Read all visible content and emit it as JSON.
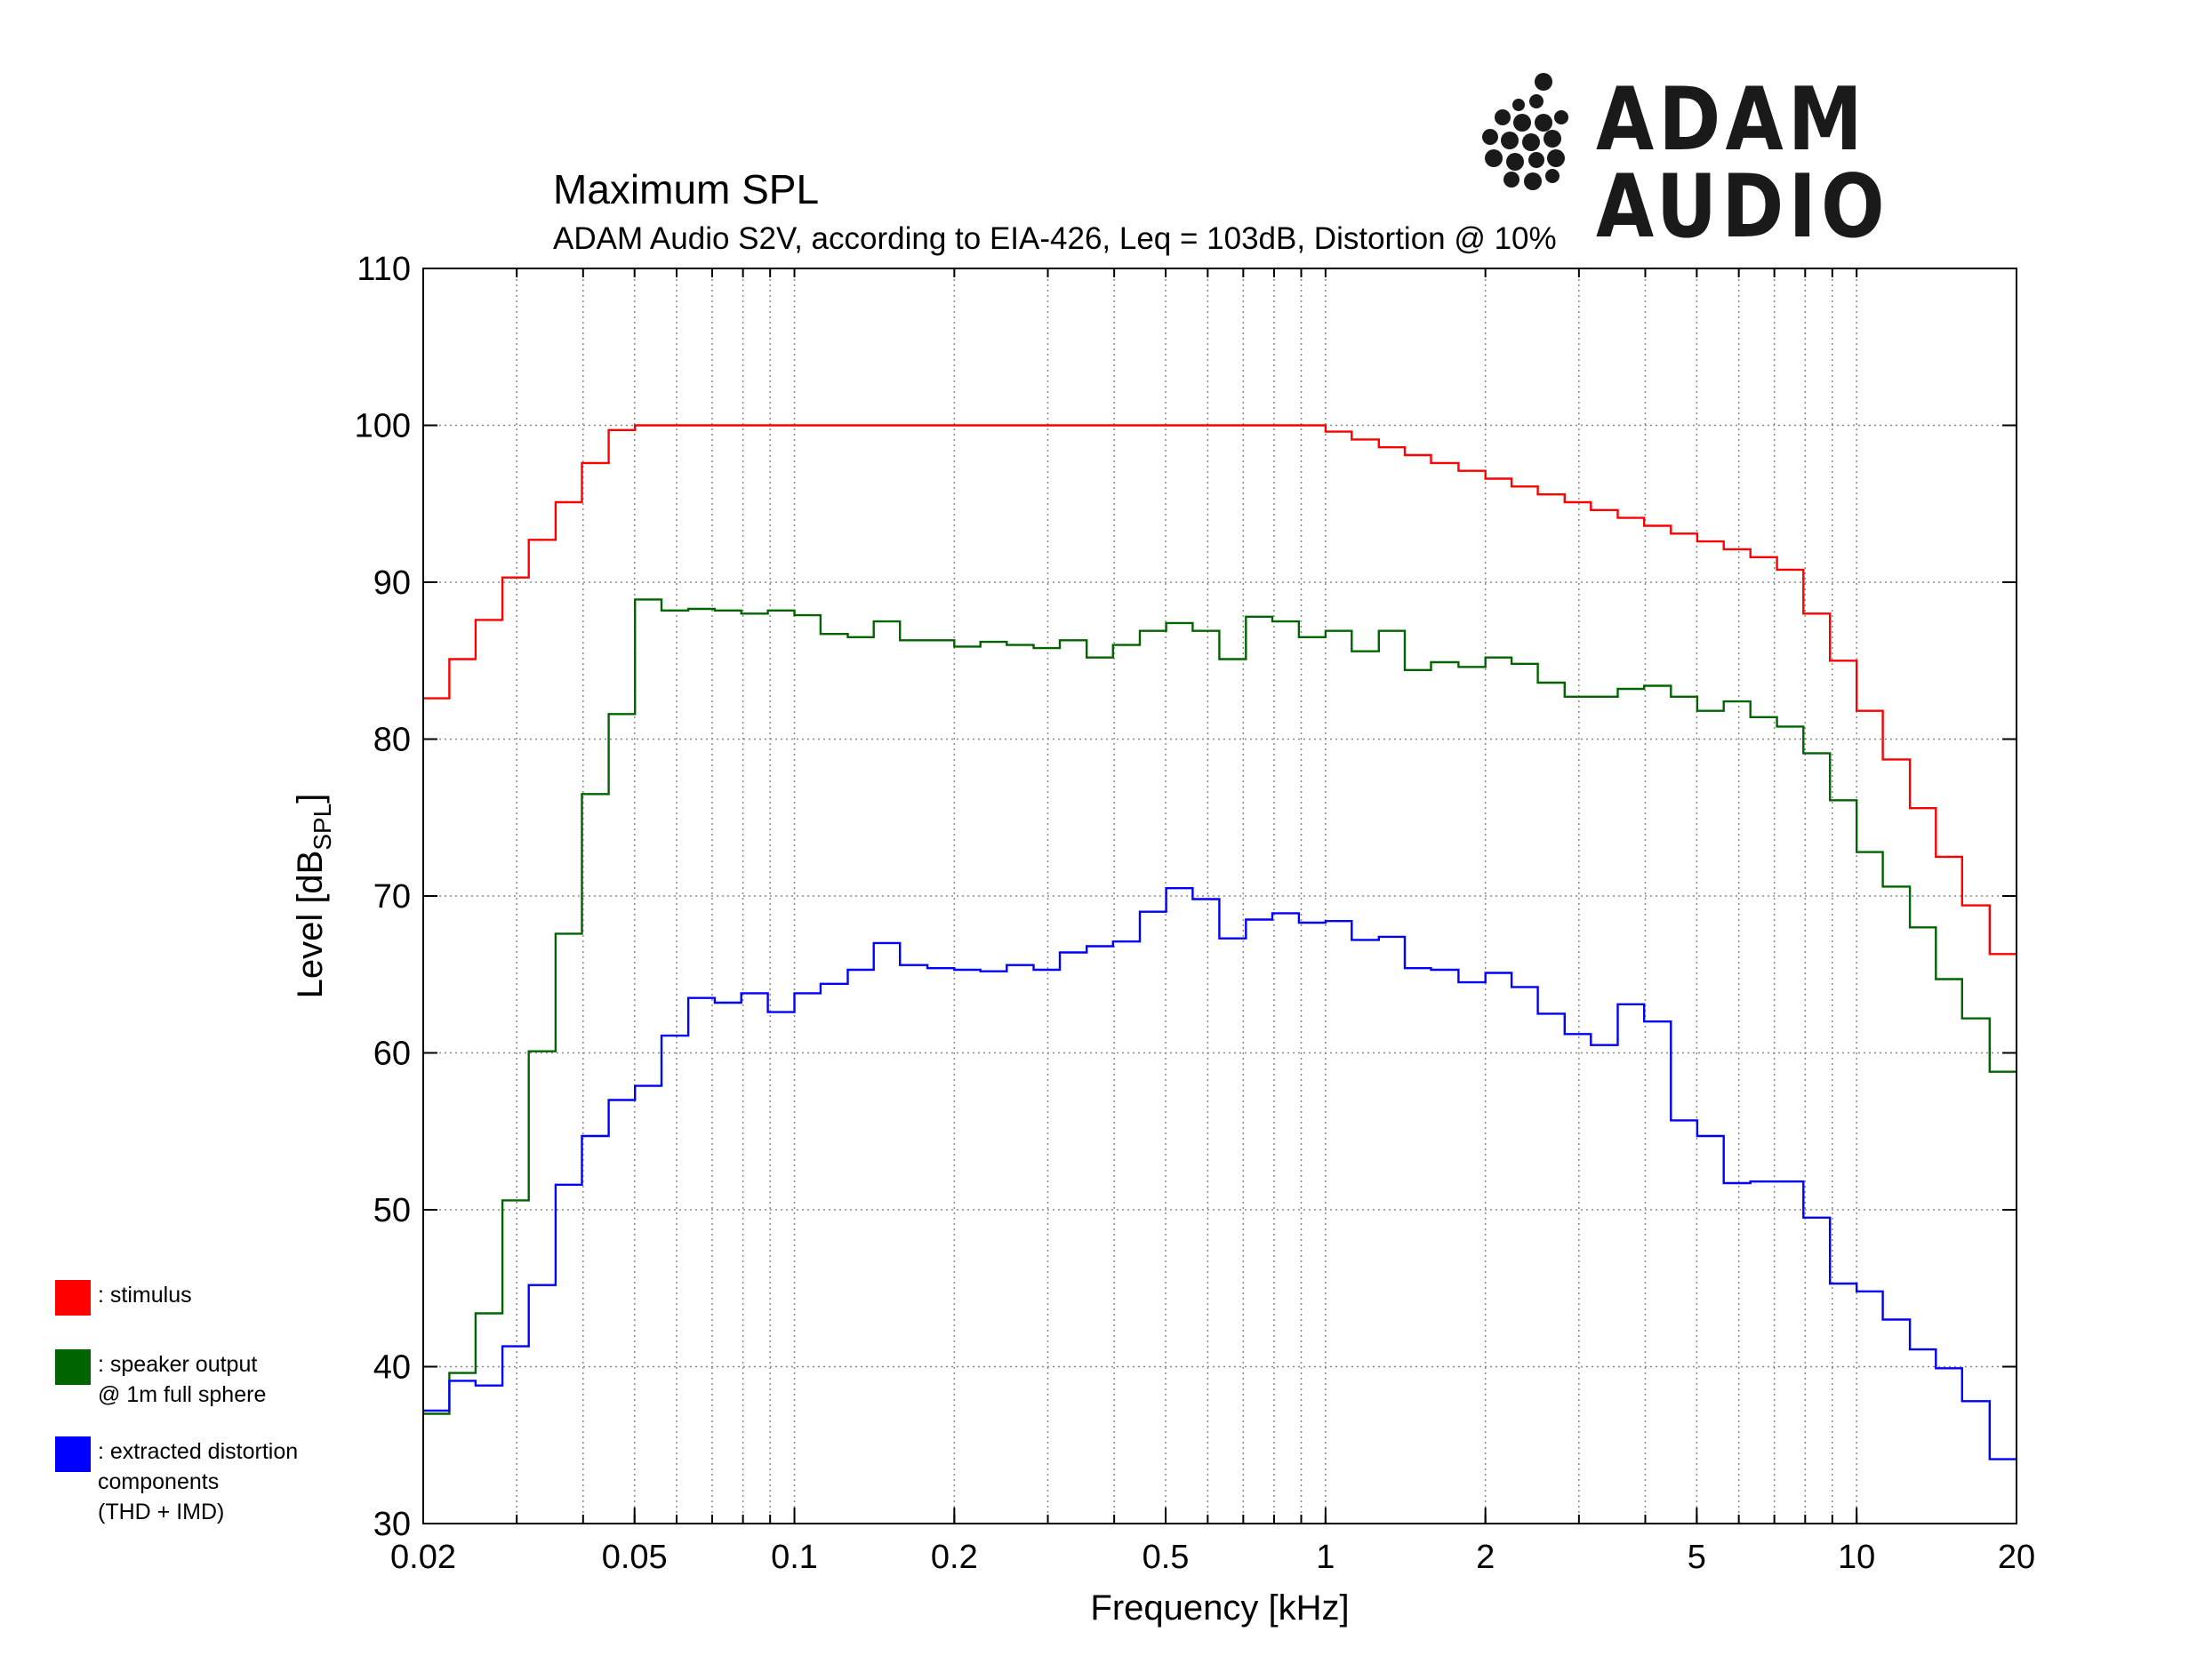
{
  "brand": {
    "name": "ADAM AUDIO",
    "logo_icon": "dot-cluster-logo-icon"
  },
  "chart_data": {
    "type": "line",
    "title": "Maximum SPL",
    "subtitle": "ADAM Audio S2V, according to EIA-426, Leq = 103dB, Distortion @ 10%",
    "xlabel": "Frequency [kHz]",
    "ylabel": "Level [dB",
    "ylabel_sub": "SPL",
    "ylabel_end": "]",
    "x_scale": "log",
    "xlim": [
      0.02,
      20
    ],
    "ylim": [
      30,
      110
    ],
    "grid": true,
    "step_plot": true,
    "x_ticks": [
      0.02,
      0.05,
      0.1,
      0.2,
      0.5,
      1,
      2,
      5,
      10,
      20
    ],
    "x_tick_labels": [
      "0.02",
      "0.05",
      "0.1",
      "0.2",
      "0.5",
      "1",
      "2",
      "5",
      "10",
      "20"
    ],
    "y_ticks": [
      30,
      40,
      50,
      60,
      70,
      80,
      90,
      100,
      110
    ],
    "y_tick_labels": [
      "30",
      "40",
      "50",
      "60",
      "70",
      "80",
      "90",
      "100",
      "110"
    ],
    "legend_placement": "bottom-left, outside plot",
    "x": [
      0.02,
      0.0224,
      0.0251,
      0.0282,
      0.0316,
      0.0355,
      0.0398,
      0.0447,
      0.0501,
      0.0562,
      0.0631,
      0.0708,
      0.0794,
      0.0891,
      0.1,
      0.112,
      0.126,
      0.141,
      0.158,
      0.178,
      0.2,
      0.224,
      0.251,
      0.282,
      0.316,
      0.355,
      0.398,
      0.447,
      0.501,
      0.562,
      0.631,
      0.708,
      0.794,
      0.891,
      1.0,
      1.12,
      1.26,
      1.41,
      1.58,
      1.78,
      2.0,
      2.24,
      2.51,
      2.82,
      3.16,
      3.55,
      3.98,
      4.47,
      5.01,
      5.62,
      6.31,
      7.08,
      7.94,
      8.91,
      10.0,
      11.2,
      12.6,
      14.1,
      15.8,
      17.8,
      20.0
    ],
    "series": [
      {
        "name": "stimulus",
        "color": "#ff0000",
        "values": [
          82.6,
          85.1,
          87.6,
          90.3,
          92.7,
          95.1,
          97.6,
          99.7,
          100.0,
          100.0,
          100.0,
          100.0,
          100.0,
          100.0,
          100.0,
          100.0,
          100.0,
          100.0,
          100.0,
          100.0,
          100.0,
          100.0,
          100.0,
          100.0,
          100.0,
          100.0,
          100.0,
          100.0,
          100.0,
          100.0,
          100.0,
          100.0,
          100.0,
          100.0,
          99.6,
          99.1,
          98.6,
          98.1,
          97.6,
          97.1,
          96.6,
          96.1,
          95.6,
          95.1,
          94.6,
          94.1,
          93.6,
          93.1,
          92.6,
          92.1,
          91.6,
          90.8,
          88.0,
          85.0,
          81.8,
          78.7,
          75.6,
          72.5,
          69.4,
          66.3,
          66.3
        ]
      },
      {
        "name": "speaker output\n@ 1m full sphere",
        "color": "#006400",
        "values": [
          37.0,
          39.6,
          43.4,
          50.6,
          60.1,
          67.6,
          76.5,
          81.6,
          88.9,
          88.2,
          88.3,
          88.2,
          88.0,
          88.2,
          87.9,
          86.7,
          86.5,
          87.5,
          86.3,
          86.3,
          85.9,
          86.2,
          86.0,
          85.8,
          86.3,
          85.2,
          86.0,
          86.9,
          87.4,
          86.9,
          85.1,
          87.8,
          87.5,
          86.5,
          86.9,
          85.6,
          86.9,
          84.4,
          84.9,
          84.6,
          85.2,
          84.8,
          83.6,
          82.7,
          82.7,
          83.2,
          83.4,
          82.7,
          81.8,
          82.4,
          81.4,
          80.8,
          79.1,
          76.1,
          72.8,
          70.6,
          68.0,
          64.7,
          62.2,
          58.8,
          58.8
        ]
      },
      {
        "name": "extracted distortion\ncomponents\n(THD + IMD)",
        "color": "#0000ff",
        "values": [
          37.2,
          39.1,
          38.8,
          41.3,
          45.2,
          51.6,
          54.7,
          57.0,
          57.9,
          61.1,
          63.5,
          63.2,
          63.8,
          62.6,
          63.8,
          64.4,
          65.3,
          67.0,
          65.6,
          65.4,
          65.3,
          65.2,
          65.6,
          65.3,
          66.4,
          66.8,
          67.1,
          69.0,
          70.5,
          69.8,
          67.3,
          68.5,
          68.9,
          68.3,
          68.4,
          67.2,
          67.4,
          65.4,
          65.3,
          64.5,
          65.1,
          64.2,
          62.5,
          61.2,
          60.5,
          63.1,
          62.0,
          55.7,
          54.7,
          51.7,
          51.8,
          51.8,
          49.5,
          45.3,
          44.8,
          43.0,
          41.1,
          39.9,
          37.8,
          34.1,
          34.1
        ]
      }
    ]
  }
}
